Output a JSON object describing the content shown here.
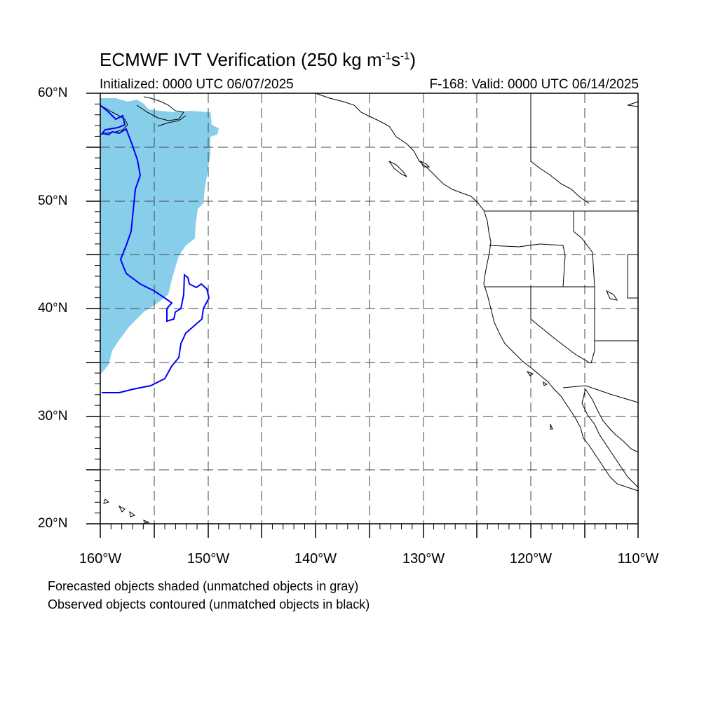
{
  "title": {
    "main": "ECMWF IVT Verification (250 kg m",
    "exp1": "-1",
    "mid": "s",
    "exp2": "-1",
    "end": ")"
  },
  "subtitle_left": "Initialized: 0000 UTC 06/07/2025",
  "subtitle_right": "F-168: Valid: 0000 UTC 06/14/2025",
  "lat_labels": [
    "60°N",
    "50°N",
    "40°N",
    "30°N",
    "20°N"
  ],
  "lon_labels": [
    "160°W",
    "150°W",
    "140°W",
    "130°W",
    "120°W",
    "110°W"
  ],
  "notes": [
    "Forecasted objects shaded (unmatched objects in gray)",
    "Observed objects contoured (unmatched objects in black)"
  ],
  "map": {
    "lon_range": [
      -160,
      -110
    ],
    "lat_range": [
      20,
      60
    ],
    "grid": true,
    "forecast_fill_color": "#87ceeb",
    "observed_contour_color": "#0000ff",
    "coastline_color": "#000000"
  }
}
